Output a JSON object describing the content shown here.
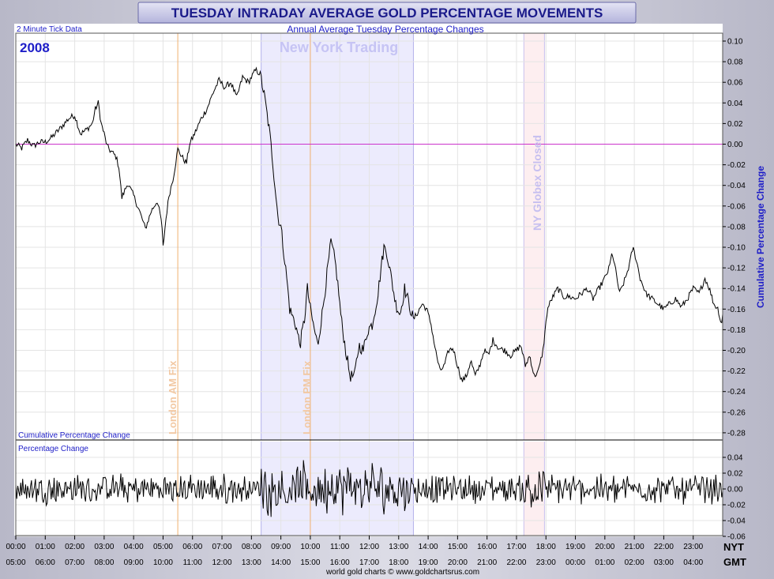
{
  "header": {
    "title": "TUESDAY INTRADAY AVERAGE GOLD PERCENTAGE MOVEMENTS",
    "subtitle": "Annual Average Tuesday Percentage Changes",
    "tick_note": "2 Minute Tick Data",
    "year": "2008"
  },
  "annotations": {
    "ny_trading": "New York Trading",
    "london_am": "London AM Fix",
    "london_pm": "London PM Fix",
    "ny_globex": "NY Globex Closed"
  },
  "panels": {
    "upper_label": "Cumulative Percentage Change",
    "lower_label": "Percentage Change",
    "right_axis_label": "Cumulative Percentage Change"
  },
  "axes": {
    "nyt_label": "NYT",
    "gmt_label": "GMT",
    "nyt_ticks": [
      "00:00",
      "01:00",
      "02:00",
      "03:00",
      "04:00",
      "05:00",
      "06:00",
      "07:00",
      "08:00",
      "09:00",
      "10:00",
      "11:00",
      "12:00",
      "13:00",
      "14:00",
      "15:00",
      "16:00",
      "17:00",
      "18:00",
      "19:00",
      "20:00",
      "21:00",
      "22:00",
      "23:00"
    ],
    "gmt_ticks": [
      "05:00",
      "06:00",
      "07:00",
      "08:00",
      "09:00",
      "10:00",
      "11:00",
      "12:00",
      "13:00",
      "14:00",
      "15:00",
      "16:00",
      "17:00",
      "18:00",
      "19:00",
      "20:00",
      "21:00",
      "22:00",
      "23:00",
      "00:00",
      "01:00",
      "02:00",
      "03:00",
      "04:00"
    ],
    "upper_ticks": [
      "0.10",
      "0.08",
      "0.06",
      "0.04",
      "0.02",
      "0.00",
      "-0.02",
      "-0.04",
      "-0.06",
      "-0.08",
      "-0.10",
      "-0.12",
      "-0.14",
      "-0.16",
      "-0.18",
      "-0.20",
      "-0.22",
      "-0.24",
      "-0.26",
      "-0.28"
    ],
    "lower_ticks": [
      "0.04",
      "0.02",
      "0.00",
      "-0.02",
      "-0.04",
      "-0.06"
    ]
  },
  "footer": {
    "credit": "world gold charts © www.goldchartsrus.com"
  },
  "colors": {
    "cumulative_line": "#000000",
    "zero_line": "#cc33cc",
    "ny_trading_band": "#ecebfd",
    "globex_band": "#fdeef0",
    "london_fix_line": "#f0b070",
    "title_text": "#1a1a8a",
    "axis_label_blue": "#1e1ec8"
  },
  "chart_data": {
    "type": "line",
    "x_unit": "hours NYT",
    "x_range": [
      0,
      24
    ],
    "upper_ylim": [
      -0.285,
      0.105
    ],
    "lower_ylim": [
      -0.06,
      0.06
    ],
    "grid": true,
    "regions": [
      {
        "label": "New York Trading",
        "x_start": 8.33,
        "x_end": 13.5
      },
      {
        "label": "NY Globex Closed",
        "x_start": 17.25,
        "x_end": 17.95
      }
    ],
    "vlines": [
      {
        "label": "London AM Fix",
        "x": 5.5
      },
      {
        "label": "London PM Fix",
        "x": 10.0
      }
    ],
    "series": [
      {
        "panel": "upper",
        "name": "Cumulative Percentage Change",
        "points": [
          [
            0.0,
            0.0
          ],
          [
            0.2,
            -0.004
          ],
          [
            0.4,
            0.004
          ],
          [
            0.6,
            -0.002
          ],
          [
            0.8,
            0.002
          ],
          [
            1.0,
            0.002
          ],
          [
            1.2,
            0.006
          ],
          [
            1.5,
            0.015
          ],
          [
            1.8,
            0.025
          ],
          [
            2.0,
            0.028
          ],
          [
            2.2,
            0.01
          ],
          [
            2.4,
            0.014
          ],
          [
            2.6,
            0.02
          ],
          [
            2.7,
            0.034
          ],
          [
            2.8,
            0.04
          ],
          [
            2.9,
            0.02
          ],
          [
            3.0,
            0.01
          ],
          [
            3.1,
            -0.002
          ],
          [
            3.2,
            -0.006
          ],
          [
            3.4,
            -0.012
          ],
          [
            3.5,
            -0.022
          ],
          [
            3.6,
            -0.052
          ],
          [
            3.8,
            -0.038
          ],
          [
            4.0,
            -0.05
          ],
          [
            4.2,
            -0.065
          ],
          [
            4.4,
            -0.082
          ],
          [
            4.6,
            -0.065
          ],
          [
            4.8,
            -0.055
          ],
          [
            4.95,
            -0.075
          ],
          [
            5.0,
            -0.1
          ],
          [
            5.1,
            -0.072
          ],
          [
            5.2,
            -0.05
          ],
          [
            5.35,
            -0.032
          ],
          [
            5.5,
            -0.005
          ],
          [
            5.7,
            -0.015
          ],
          [
            5.8,
            -0.018
          ],
          [
            5.9,
            0.0
          ],
          [
            6.1,
            0.012
          ],
          [
            6.3,
            0.025
          ],
          [
            6.5,
            0.035
          ],
          [
            6.7,
            0.05
          ],
          [
            6.9,
            0.062
          ],
          [
            7.1,
            0.055
          ],
          [
            7.3,
            0.06
          ],
          [
            7.5,
            0.045
          ],
          [
            7.7,
            0.065
          ],
          [
            7.9,
            0.06
          ],
          [
            8.0,
            0.065
          ],
          [
            8.15,
            0.072
          ],
          [
            8.3,
            0.068
          ],
          [
            8.45,
            0.045
          ],
          [
            8.6,
            0.015
          ],
          [
            8.7,
            -0.01
          ],
          [
            8.8,
            -0.04
          ],
          [
            8.9,
            -0.07
          ],
          [
            9.0,
            -0.08
          ],
          [
            9.1,
            -0.105
          ],
          [
            9.2,
            -0.13
          ],
          [
            9.3,
            -0.16
          ],
          [
            9.5,
            -0.175
          ],
          [
            9.65,
            -0.195
          ],
          [
            9.8,
            -0.17
          ],
          [
            9.9,
            -0.14
          ],
          [
            10.0,
            -0.16
          ],
          [
            10.1,
            -0.175
          ],
          [
            10.25,
            -0.195
          ],
          [
            10.4,
            -0.165
          ],
          [
            10.55,
            -0.13
          ],
          [
            10.7,
            -0.095
          ],
          [
            10.85,
            -0.115
          ],
          [
            10.95,
            -0.14
          ],
          [
            11.05,
            -0.17
          ],
          [
            11.2,
            -0.2
          ],
          [
            11.35,
            -0.225
          ],
          [
            11.5,
            -0.225
          ],
          [
            11.65,
            -0.195
          ],
          [
            11.8,
            -0.2
          ],
          [
            11.95,
            -0.18
          ],
          [
            12.1,
            -0.175
          ],
          [
            12.2,
            -0.16
          ],
          [
            12.3,
            -0.145
          ],
          [
            12.4,
            -0.12
          ],
          [
            12.5,
            -0.1
          ],
          [
            12.6,
            -0.105
          ],
          [
            12.75,
            -0.13
          ],
          [
            12.9,
            -0.155
          ],
          [
            13.05,
            -0.165
          ],
          [
            13.2,
            -0.14
          ],
          [
            13.35,
            -0.155
          ],
          [
            13.5,
            -0.17
          ],
          [
            13.65,
            -0.163
          ],
          [
            13.8,
            -0.155
          ],
          [
            13.95,
            -0.16
          ],
          [
            14.1,
            -0.175
          ],
          [
            14.25,
            -0.2
          ],
          [
            14.4,
            -0.22
          ],
          [
            14.55,
            -0.215
          ],
          [
            14.7,
            -0.2
          ],
          [
            14.85,
            -0.198
          ],
          [
            15.0,
            -0.215
          ],
          [
            15.15,
            -0.23
          ],
          [
            15.3,
            -0.225
          ],
          [
            15.45,
            -0.21
          ],
          [
            15.6,
            -0.225
          ],
          [
            15.75,
            -0.215
          ],
          [
            15.9,
            -0.2
          ],
          [
            16.05,
            -0.205
          ],
          [
            16.2,
            -0.19
          ],
          [
            16.4,
            -0.198
          ],
          [
            16.6,
            -0.2
          ],
          [
            16.8,
            -0.205
          ],
          [
            17.0,
            -0.2
          ],
          [
            17.15,
            -0.195
          ],
          [
            17.3,
            -0.215
          ],
          [
            17.45,
            -0.205
          ],
          [
            17.6,
            -0.225
          ],
          [
            17.75,
            -0.22
          ],
          [
            17.9,
            -0.2
          ],
          [
            18.05,
            -0.16
          ],
          [
            18.2,
            -0.15
          ],
          [
            18.4,
            -0.14
          ],
          [
            18.6,
            -0.148
          ],
          [
            18.8,
            -0.148
          ],
          [
            19.0,
            -0.15
          ],
          [
            19.2,
            -0.145
          ],
          [
            19.4,
            -0.14
          ],
          [
            19.6,
            -0.15
          ],
          [
            19.8,
            -0.14
          ],
          [
            20.0,
            -0.13
          ],
          [
            20.15,
            -0.12
          ],
          [
            20.25,
            -0.105
          ],
          [
            20.35,
            -0.12
          ],
          [
            20.5,
            -0.145
          ],
          [
            20.7,
            -0.13
          ],
          [
            20.85,
            -0.115
          ],
          [
            20.95,
            -0.1
          ],
          [
            21.05,
            -0.11
          ],
          [
            21.2,
            -0.13
          ],
          [
            21.4,
            -0.145
          ],
          [
            21.6,
            -0.15
          ],
          [
            21.8,
            -0.155
          ],
          [
            22.0,
            -0.16
          ],
          [
            22.2,
            -0.155
          ],
          [
            22.4,
            -0.15
          ],
          [
            22.6,
            -0.158
          ],
          [
            22.8,
            -0.15
          ],
          [
            23.0,
            -0.14
          ],
          [
            23.2,
            -0.145
          ],
          [
            23.4,
            -0.13
          ],
          [
            23.55,
            -0.14
          ],
          [
            23.7,
            -0.155
          ],
          [
            23.85,
            -0.16
          ],
          [
            23.95,
            -0.175
          ],
          [
            24.0,
            -0.165
          ]
        ]
      },
      {
        "panel": "lower",
        "name": "Percentage Change",
        "values_note": "per-tick change, |value| mostly within 0.02, peaks near ±0.04 during New York Trading"
      }
    ]
  }
}
